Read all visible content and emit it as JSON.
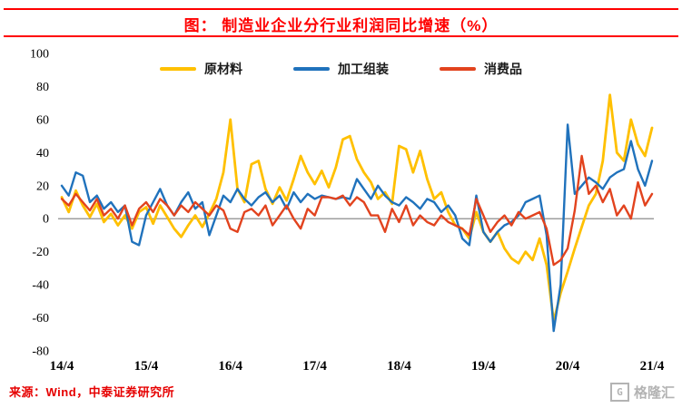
{
  "header": {
    "title": "图：  制造业企业分行业利润同比增速（%）",
    "accent_color": "#FF0000"
  },
  "footer": {
    "source": "来源：Wind，中泰证券研究所",
    "watermark": "格隆汇",
    "watermark_glyph": "G"
  },
  "chart_data": {
    "type": "line",
    "title": "制造业企业分行业利润同比增速（%）",
    "grid": false,
    "legend_position": "top",
    "ylim": [
      -80,
      100
    ],
    "y_ticks": [
      100,
      80,
      60,
      40,
      20,
      0,
      -20,
      -40,
      -60,
      -80
    ],
    "x_start": "2014/4",
    "x_end": "2021/4",
    "x_tick_labels": [
      "14/4",
      "15/4",
      "16/4",
      "17/4",
      "18/4",
      "19/4",
      "20/4",
      "21/4"
    ],
    "x_tick_positions": [
      0,
      12,
      24,
      36,
      48,
      60,
      72,
      84
    ],
    "series": [
      {
        "name": "原材料",
        "key": "raw-materials",
        "color": "#FFC000",
        "values": [
          13,
          4,
          17,
          8,
          1,
          9,
          -2,
          3,
          -4,
          2,
          -6,
          4,
          7,
          -3,
          8,
          1,
          -6,
          -11,
          -4,
          2,
          -5,
          3,
          12,
          28,
          60,
          18,
          10,
          33,
          35,
          18,
          9,
          19,
          11,
          24,
          38,
          28,
          21,
          29,
          19,
          31,
          48,
          50,
          36,
          28,
          22,
          12,
          16,
          9,
          44,
          42,
          28,
          41,
          24,
          12,
          16,
          4,
          -4,
          -6,
          -12,
          4,
          -8,
          -14,
          -8,
          -18,
          -24,
          -27,
          -20,
          -25,
          -12,
          -28,
          -62,
          -45,
          -32,
          -18,
          -5,
          8,
          15,
          35,
          75,
          40,
          35,
          60,
          45,
          38,
          55
        ]
      },
      {
        "name": "加工组装",
        "key": "processing-assembly",
        "color": "#2072BC",
        "values": [
          20,
          14,
          28,
          26,
          10,
          14,
          6,
          10,
          4,
          8,
          -14,
          -16,
          2,
          10,
          18,
          8,
          2,
          10,
          16,
          6,
          10,
          -10,
          2,
          14,
          10,
          18,
          12,
          8,
          13,
          16,
          10,
          14,
          6,
          16,
          10,
          15,
          12,
          14,
          13,
          12,
          13,
          12,
          24,
          18,
          12,
          20,
          14,
          10,
          8,
          13,
          10,
          6,
          12,
          10,
          4,
          8,
          2,
          -12,
          -16,
          14,
          -8,
          -14,
          -8,
          -4,
          -2,
          2,
          10,
          12,
          14,
          -10,
          -68,
          -40,
          57,
          15,
          20,
          25,
          22,
          18,
          25,
          28,
          30,
          47,
          30,
          20,
          35
        ]
      },
      {
        "name": "消费品",
        "key": "consumer-goods",
        "color": "#E2431E",
        "values": [
          12,
          8,
          15,
          10,
          5,
          12,
          2,
          6,
          0,
          8,
          -4,
          6,
          10,
          4,
          12,
          8,
          2,
          8,
          4,
          10,
          6,
          2,
          8,
          5,
          -6,
          -8,
          4,
          6,
          2,
          8,
          -4,
          2,
          8,
          0,
          -6,
          6,
          2,
          13,
          13,
          12,
          14,
          8,
          13,
          10,
          2,
          2,
          -8,
          6,
          -2,
          8,
          -4,
          2,
          -2,
          -4,
          2,
          -2,
          -4,
          -6,
          -10,
          12,
          2,
          -8,
          -2,
          2,
          -4,
          4,
          0,
          2,
          4,
          -6,
          -28,
          -25,
          -18,
          5,
          38,
          15,
          20,
          10,
          18,
          2,
          8,
          0,
          22,
          8,
          15
        ]
      }
    ]
  }
}
